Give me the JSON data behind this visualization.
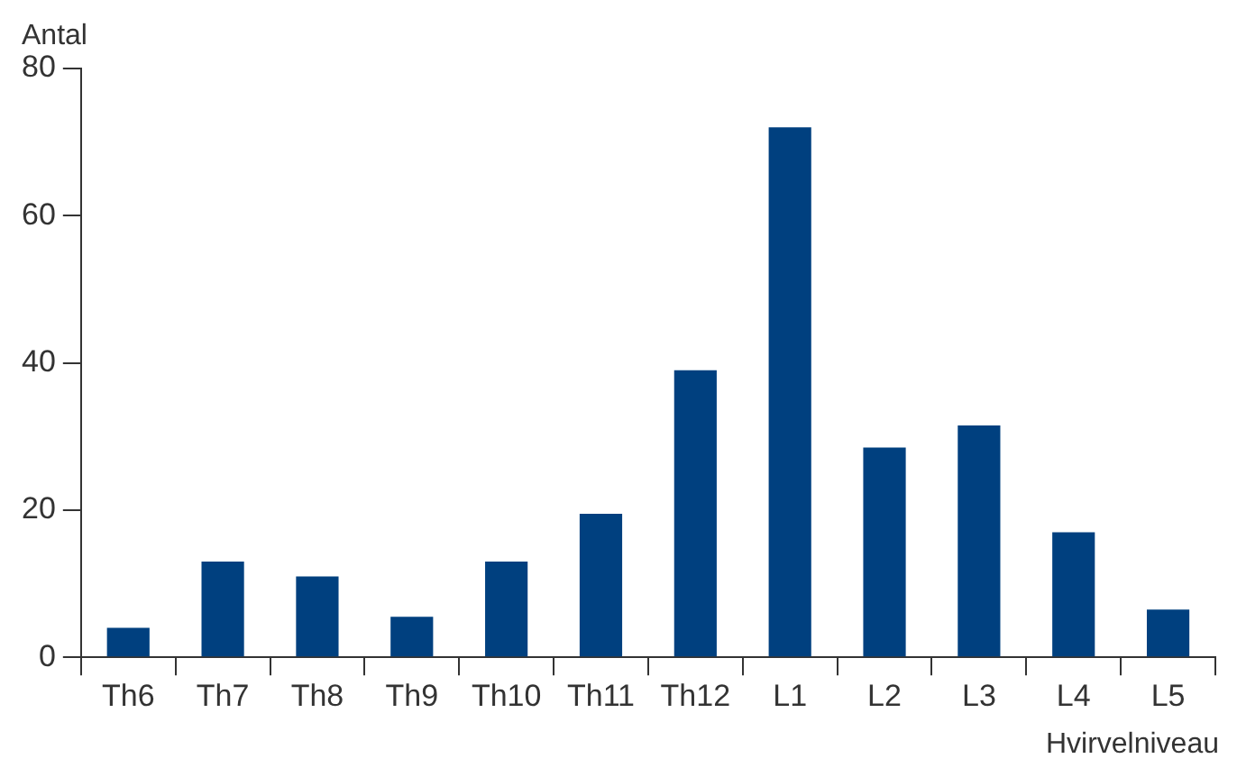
{
  "chart_data": {
    "type": "bar",
    "xlabel": "Hvirvelniveau",
    "ylabel": "Antal",
    "categories": [
      "Th6",
      "Th7",
      "Th8",
      "Th9",
      "Th10",
      "Th11",
      "Th12",
      "L1",
      "L2",
      "L3",
      "L4",
      "L5"
    ],
    "values": [
      4,
      13,
      11,
      5.5,
      13,
      19.5,
      39,
      72,
      28.5,
      31.5,
      17,
      6.5
    ],
    "color": "#00407f",
    "ylim": [
      0,
      80
    ],
    "yticks": [
      0,
      20,
      40,
      60,
      80
    ],
    "grid": false,
    "legend": false
  }
}
